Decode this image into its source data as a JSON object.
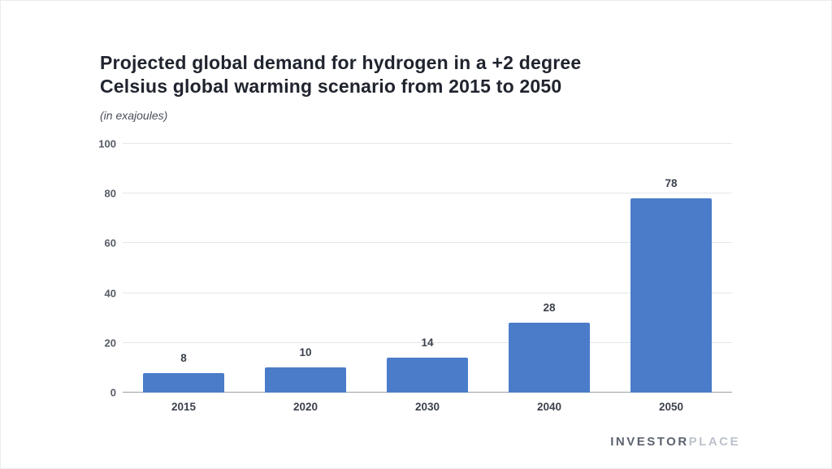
{
  "chart_data": {
    "type": "bar",
    "title": "Projected global demand for hydrogen in a +2 degree\nCelsius global warming scenario from 2015 to 2050",
    "subtitle": "(in exajoules)",
    "categories": [
      "2015",
      "2020",
      "2030",
      "2040",
      "2050"
    ],
    "values": [
      8,
      10,
      14,
      28,
      78
    ],
    "xlabel": "",
    "ylabel": "",
    "ylim": [
      0,
      100
    ],
    "yticks": [
      0,
      20,
      40,
      60,
      80,
      100
    ],
    "grid": true,
    "legend": "none",
    "bar_color": "#4a7cc9"
  },
  "footer": {
    "brand_bold": "INVESTOR",
    "brand_light": "PLACE"
  }
}
